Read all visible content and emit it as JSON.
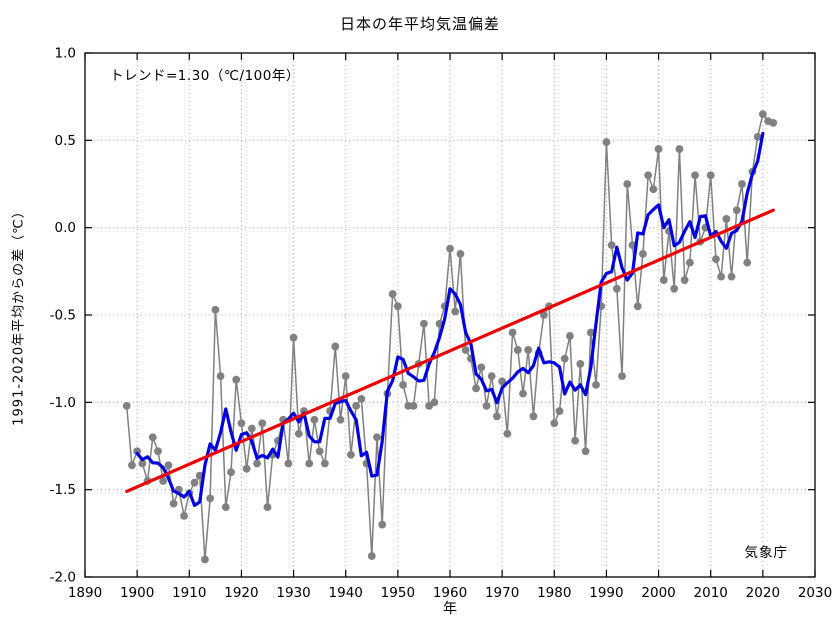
{
  "page": {
    "background": "#ffffff"
  },
  "chart_data": {
    "type": "line",
    "title": "日本の年平均気温偏差",
    "xlabel": "年",
    "ylabel": "1991-2020年平均からの差（℃）",
    "annotation": "トレンド=1.30（℃/100年）",
    "source_label": "気象庁",
    "xlim": [
      1890,
      2030
    ],
    "ylim": [
      -2.0,
      1.0
    ],
    "x_ticks": [
      1890,
      1900,
      1910,
      1920,
      1930,
      1940,
      1950,
      1960,
      1970,
      1980,
      1990,
      2000,
      2010,
      2020,
      2030
    ],
    "y_ticks": [
      -2.0,
      -1.5,
      -1.0,
      -0.5,
      0.0,
      0.5,
      1.0
    ],
    "y_tick_labels": [
      "-2.0",
      "-1.5",
      "-1.0",
      "-0.5",
      "0.0",
      "0.5",
      "1.0"
    ],
    "grid": "dotted",
    "legend": "none",
    "colors": {
      "annual": "#808080",
      "mean5": "#0000e0",
      "trend": "#ee0000",
      "grid": "#b3b3b3",
      "axis": "#000000"
    },
    "series": [
      {
        "name": "annual-anomaly",
        "style": "line+markers",
        "color_key": "annual",
        "x_start": 1898,
        "x_step": 1,
        "x_end": 2022,
        "values": [
          -1.02,
          -1.36,
          -1.28,
          -1.35,
          -1.45,
          -1.2,
          -1.28,
          -1.45,
          -1.36,
          -1.58,
          -1.5,
          -1.65,
          -1.52,
          -1.46,
          -1.42,
          -1.9,
          -1.55,
          -0.47,
          -0.85,
          -1.6,
          -1.4,
          -0.87,
          -1.12,
          -1.38,
          -1.15,
          -1.35,
          -1.12,
          -1.6,
          -1.3,
          -1.22,
          -1.1,
          -1.35,
          -0.63,
          -1.18,
          -1.05,
          -1.35,
          -1.1,
          -1.28,
          -1.35,
          -1.05,
          -0.68,
          -1.1,
          -0.85,
          -1.3,
          -1.02,
          -0.98,
          -1.35,
          -1.88,
          -1.2,
          -1.7,
          -0.95,
          -0.38,
          -0.45,
          -0.9,
          -1.02,
          -1.02,
          -0.78,
          -0.55,
          -1.02,
          -1.0,
          -0.55,
          -0.45,
          -0.12,
          -0.48,
          -0.15,
          -0.7,
          -0.75,
          -0.92,
          -0.8,
          -1.02,
          -0.85,
          -1.08,
          -0.88,
          -1.18,
          -0.6,
          -0.7,
          -0.95,
          -0.7,
          -1.08,
          -0.72,
          -0.5,
          -0.45,
          -1.12,
          -1.05,
          -0.75,
          -0.62,
          -1.22,
          -0.78,
          -1.28,
          -0.6,
          -0.9,
          -0.45,
          0.49,
          -0.1,
          -0.35,
          -0.85,
          0.25,
          -0.1,
          -0.45,
          -0.15,
          0.3,
          0.22,
          0.45,
          -0.3,
          -0.02,
          -0.35,
          0.45,
          -0.3,
          -0.2,
          0.3,
          -0.08,
          0.0,
          0.3,
          -0.18,
          -0.28,
          0.05,
          -0.28,
          0.1,
          0.25,
          -0.2,
          0.32,
          0.52,
          0.65,
          0.61,
          0.6
        ]
      },
      {
        "name": "five-year-running-mean",
        "style": "line",
        "color_key": "mean5",
        "derived": "centered-5yr-mean-of-annual"
      },
      {
        "name": "linear-trend",
        "style": "line",
        "color_key": "trend",
        "trend_per_100yr": 1.3,
        "x1": 1898,
        "y1": -1.51,
        "x2": 2022,
        "y2": 0.1
      }
    ]
  }
}
